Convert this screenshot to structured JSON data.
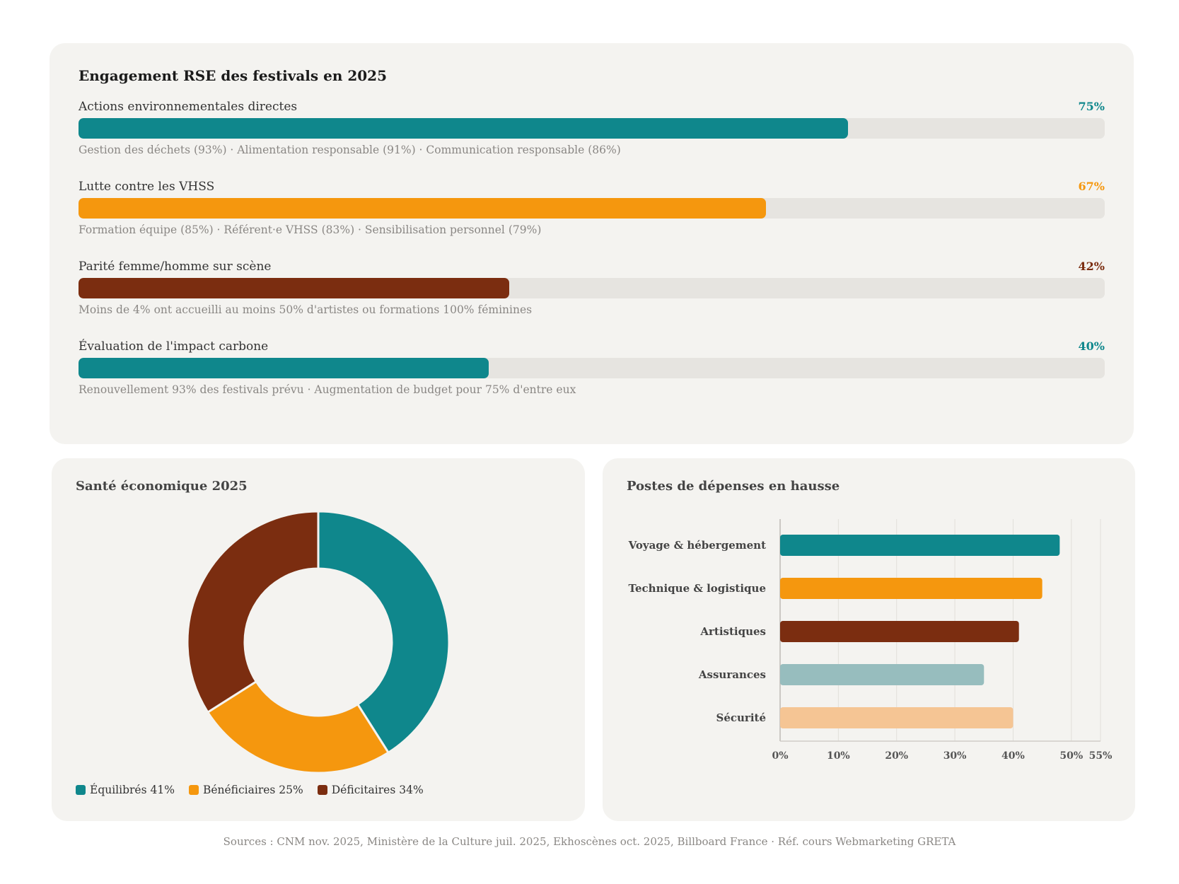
{
  "rse": {
    "title": "Engagement RSE des festivals en 2025",
    "items": [
      {
        "label": "Actions environnementales directes",
        "value_text": "75%",
        "value": 75,
        "color": "#0f878c",
        "detail": "Gestion des déchets (93%) · Alimentation responsable (91%) · Communication responsable (86%)"
      },
      {
        "label": "Lutte contre les VHSS",
        "value_text": "67%",
        "value": 67,
        "color": "#f5970e",
        "detail": "Formation équipe (85%) · Référent·e VHSS (83%) · Sensibilisation personnel (79%)"
      },
      {
        "label": "Parité femme/homme sur scène",
        "value_text": "42%",
        "value": 42,
        "color": "#7b2d10",
        "detail": "Moins de 4% ont accueilli au moins 50% d'artistes ou formations 100% féminines"
      },
      {
        "label": "Évaluation de l'impact carbone",
        "value_text": "40%",
        "value": 40,
        "color": "#0f878c",
        "detail": "Renouvellement 93% des festivals prévu · Augmentation de budget pour 75% d'entre eux"
      }
    ]
  },
  "economic": {
    "title": "Santé économique 2025",
    "chart_data": {
      "type": "pie",
      "title": "Santé économique 2025",
      "categories": [
        "Équilibrés",
        "Bénéficiaires",
        "Déficitaires"
      ],
      "values": [
        41,
        25,
        34
      ],
      "colors": [
        "#0f878c",
        "#f5970e",
        "#7b2d10"
      ],
      "legend": "bottom-left"
    },
    "legend": [
      {
        "label": "Équilibrés 41%",
        "color": "#0f878c"
      },
      {
        "label": "Bénéficiaires 25%",
        "color": "#f5970e"
      },
      {
        "label": "Déficitaires 34%",
        "color": "#7b2d10"
      }
    ]
  },
  "expenses": {
    "title": "Postes de dépenses en hausse",
    "chart_data": {
      "type": "bar",
      "orientation": "horizontal",
      "title": "Postes de dépenses en hausse",
      "categories": [
        "Voyage & hébergement",
        "Technique & logistique",
        "Artistiques",
        "Assurances",
        "Sécurité"
      ],
      "values": [
        48,
        45,
        41,
        35,
        40
      ],
      "colors": [
        "#0f878c",
        "#f5970e",
        "#7b2d10",
        "#97bdbe",
        "#f5c594"
      ],
      "xlim": [
        0,
        55
      ],
      "x_ticks": [
        "0%",
        "10%",
        "20%",
        "30%",
        "40%",
        "50%",
        "55%"
      ],
      "x_tick_values": [
        0,
        10,
        20,
        30,
        40,
        50,
        55
      ],
      "grid": true
    }
  },
  "sources": "Sources : CNM nov. 2025, Ministère de la Culture juil. 2025, Ekhoscènes oct. 2025, Billboard France · Réf. cours Webmarketing GRETA"
}
